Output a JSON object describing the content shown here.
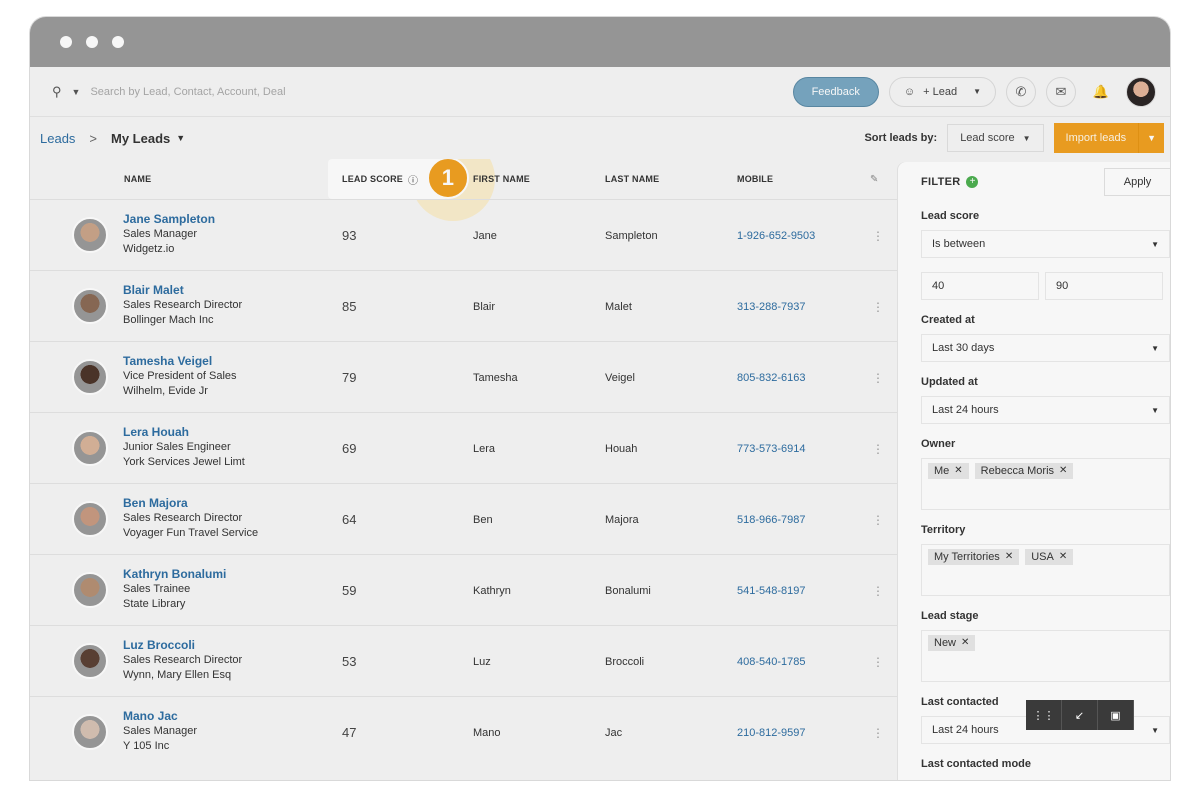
{
  "window": {
    "dots": [
      "window-dot-1",
      "window-dot-2",
      "window-dot-3"
    ]
  },
  "topbar": {
    "search_placeholder": "Search by Lead, Contact, Account, Deal",
    "feedback_label": "Feedback",
    "add_lead_label": "+ Lead"
  },
  "breadcrumb": {
    "root": "Leads",
    "separator": ">",
    "current": "My Leads"
  },
  "sort": {
    "label": "Sort leads by:",
    "value": "Lead score"
  },
  "import_label": "Import leads",
  "table": {
    "columns": {
      "name": "NAME",
      "lead_score": "LEAD SCORE",
      "first_name": "FIRST NAME",
      "last_name": "LAST NAME",
      "mobile": "MOBILE"
    },
    "step_badge": "1",
    "rows": [
      {
        "name": "Jane Sampleton",
        "title": "Sales Manager",
        "company": "Widgetz.io",
        "score": "93",
        "first": "Jane",
        "last": "Sampleton",
        "mobile": "1-926-652-9503"
      },
      {
        "name": "Blair Malet",
        "title": "Sales Research Director",
        "company": "Bollinger Mach Inc",
        "score": "85",
        "first": "Blair",
        "last": "Malet",
        "mobile": "313-288-7937"
      },
      {
        "name": "Tamesha Veigel",
        "title": "Vice President of Sales",
        "company": "Wilhelm, Evide Jr",
        "score": "79",
        "first": "Tamesha",
        "last": "Veigel",
        "mobile": "805-832-6163"
      },
      {
        "name": "Lera Houah",
        "title": "Junior Sales Engineer",
        "company": "York Services Jewel Limt",
        "score": "69",
        "first": "Lera",
        "last": "Houah",
        "mobile": "773-573-6914"
      },
      {
        "name": "Ben Majora",
        "title": "Sales Research Director",
        "company": "Voyager Fun Travel Service",
        "score": "64",
        "first": "Ben",
        "last": "Majora",
        "mobile": "518-966-7987"
      },
      {
        "name": "Kathryn Bonalumi",
        "title": "Sales Trainee",
        "company": "State Library",
        "score": "59",
        "first": "Kathryn",
        "last": "Bonalumi",
        "mobile": "541-548-8197"
      },
      {
        "name": "Luz Broccoli",
        "title": "Sales Research Director",
        "company": "Wynn, Mary Ellen Esq",
        "score": "53",
        "first": "Luz",
        "last": "Broccoli",
        "mobile": "408-540-1785"
      },
      {
        "name": "Mano Jac",
        "title": "Sales Manager",
        "company": "Y 105 Inc",
        "score": "47",
        "first": "Mano",
        "last": "Jac",
        "mobile": "210-812-9597"
      }
    ]
  },
  "filter": {
    "title": "FILTER",
    "apply_label": "Apply",
    "lead_score_label": "Lead score",
    "lead_score_op": "Is between",
    "lead_score_min": "40",
    "lead_score_max": "90",
    "created_label": "Created at",
    "created_value": "Last 30 days",
    "updated_label": "Updated at",
    "updated_value": "Last 24 hours",
    "owner_label": "Owner",
    "owner_tags": [
      "Me",
      "Rebecca Moris"
    ],
    "territory_label": "Territory",
    "territory_tags": [
      "My Territories",
      "USA"
    ],
    "stage_label": "Lead stage",
    "stage_tags": [
      "New"
    ],
    "contacted_label": "Last contacted",
    "contacted_value": "Last 24 hours",
    "contacted_mode_label": "Last contacted mode"
  },
  "avatar_colors": [
    "#c9a489",
    "#8a6a55",
    "#4b3328",
    "#d8b49a",
    "#c79a80",
    "#b58f73",
    "#5a4034",
    "#d7c2b4"
  ],
  "icons": {
    "search": "search-icon",
    "phone": "phone-icon",
    "mail": "mail-icon",
    "bell": "bell-icon",
    "info": "info-icon",
    "edit": "pencil-icon",
    "kebab": "kebab-icon"
  }
}
